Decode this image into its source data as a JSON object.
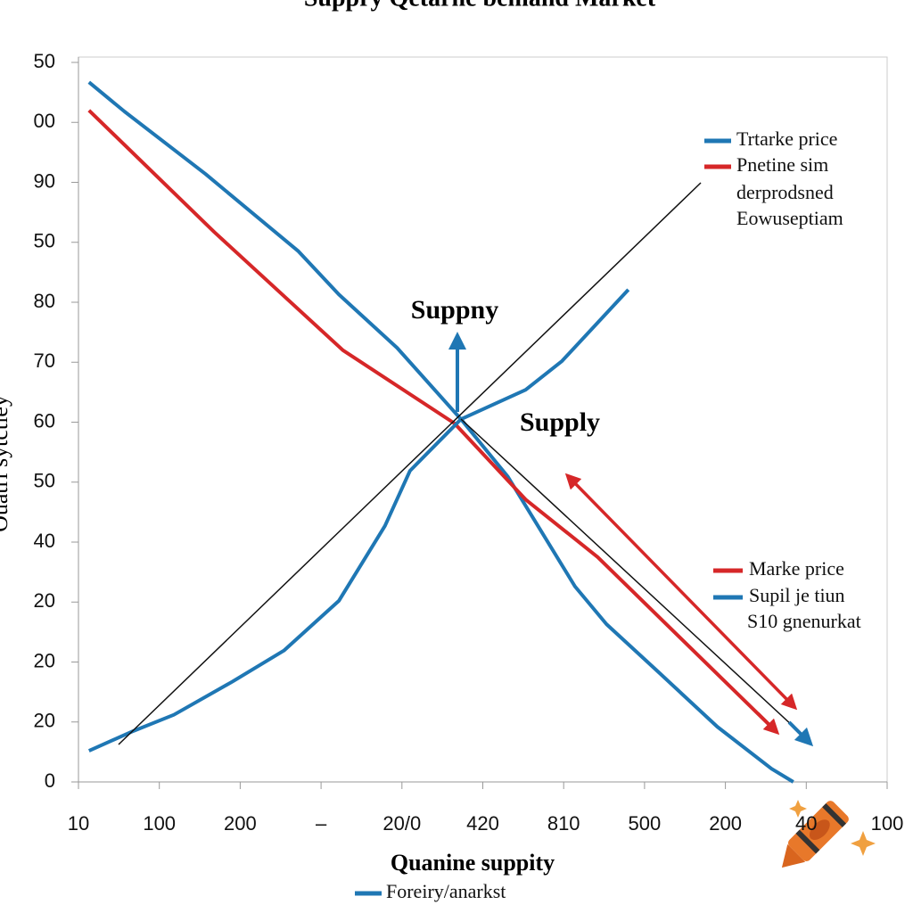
{
  "chart_data": {
    "type": "line",
    "title": "Suppry Qetarne bemand Market",
    "xlabel": "Quanine suppity",
    "ylabel": "Ouatrl sytctiey",
    "xlim": [
      0,
      10
    ],
    "xticks": [
      {
        "value": 0,
        "label": "10"
      },
      {
        "value": 1,
        "label": "100"
      },
      {
        "value": 2,
        "label": "200"
      },
      {
        "value": 3,
        "label": "–"
      },
      {
        "value": 4,
        "label": "20/0"
      },
      {
        "value": 5,
        "label": "420"
      },
      {
        "value": 6,
        "label": "810"
      },
      {
        "value": 7,
        "label": "500"
      },
      {
        "value": 8,
        "label": "200"
      },
      {
        "value": 9,
        "label": "40"
      },
      {
        "value": 10,
        "label": "100"
      }
    ],
    "ylim": [
      0,
      12
    ],
    "yticks": [
      {
        "value": 0,
        "label": "0"
      },
      {
        "value": 1,
        "label": "20"
      },
      {
        "value": 2,
        "label": "20"
      },
      {
        "value": 3,
        "label": "20"
      },
      {
        "value": 4,
        "label": "40"
      },
      {
        "value": 5,
        "label": "50"
      },
      {
        "value": 6,
        "label": "60"
      },
      {
        "value": 7,
        "label": "70"
      },
      {
        "value": 8,
        "label": "80"
      },
      {
        "value": 9,
        "label": "50"
      },
      {
        "value": 10,
        "label": "90"
      },
      {
        "value": 11,
        "label": "00"
      },
      {
        "value": 12,
        "label": "50"
      }
    ],
    "series": [
      {
        "name": "Trtarke price",
        "color": "#1f77b4",
        "x": [
          0.13,
          0.57,
          1.57,
          2.72,
          3.22,
          3.94,
          4.73,
          5.31,
          6.14,
          6.53,
          7.19,
          7.9,
          8.57,
          8.84
        ],
        "values": [
          11.67,
          11.18,
          10.14,
          8.85,
          8.13,
          7.24,
          6.05,
          5.09,
          3.26,
          2.63,
          1.81,
          0.92,
          0.22,
          0
        ]
      },
      {
        "name": "Pnetine sim",
        "color": "#d62728",
        "x": [
          0.13,
          1.68,
          3.27,
          4.65,
          5.53,
          6.42,
          8.62
        ],
        "values": [
          11.2,
          9.17,
          7.2,
          5.98,
          4.71,
          3.75,
          0.85
        ]
      },
      {
        "name": "Supil je tiun",
        "color": "#1f77b4",
        "x": [
          0.13,
          0.68,
          1.18,
          1.9,
          2.54,
          3.22,
          3.79,
          4.1,
          4.73,
          5.53,
          5.98,
          6.8
        ],
        "values": [
          0.52,
          0.85,
          1.12,
          1.67,
          2.19,
          3.02,
          4.27,
          5.19,
          6.05,
          6.54,
          7.02,
          8.21
        ]
      }
    ],
    "legend_top": [
      "derprodsned",
      "Eowuseptiam"
    ],
    "legend_bottom": [
      {
        "label": "Marke price",
        "color": "#d62728"
      },
      {
        "label": "S10 gnenurkat",
        "color": null
      }
    ],
    "annotations": [
      "Suppny",
      "Supply"
    ],
    "footer_legend": "Foreiry/anarkst"
  }
}
